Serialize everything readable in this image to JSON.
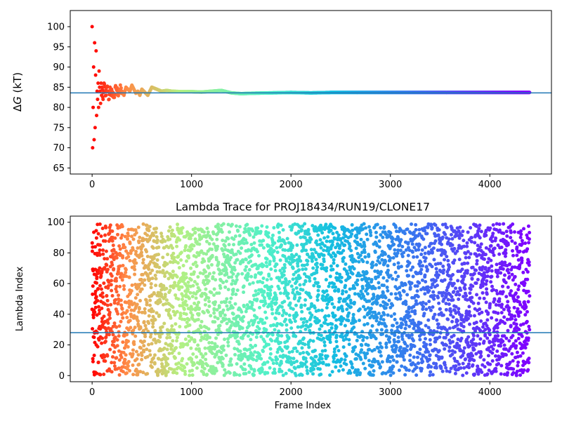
{
  "chart_data": [
    {
      "type": "scatter",
      "title": "",
      "xlabel": "",
      "ylabel": "ΔG (kT)",
      "xlim": [
        -220,
        4620
      ],
      "ylim": [
        63.5,
        104
      ],
      "xticks": [
        0,
        1000,
        2000,
        3000,
        4000
      ],
      "yticks": [
        65,
        70,
        75,
        80,
        85,
        90,
        95,
        100
      ],
      "grid": false,
      "colormap": "rainbow (red at start, violet at end)",
      "hline": {
        "y": 83.6,
        "color": "#1f77b4"
      },
      "series": [
        {
          "description_points": "approximate convergence trace",
          "x": [
            0,
            5,
            10,
            15,
            20,
            25,
            30,
            35,
            40,
            45,
            50,
            55,
            60,
            65,
            70,
            75,
            80,
            85,
            90,
            95,
            100,
            110,
            120,
            130,
            140,
            150,
            160,
            170,
            180,
            190,
            200,
            220,
            240,
            260,
            280,
            300,
            320,
            340,
            360,
            380,
            400,
            420,
            440,
            460,
            480,
            500,
            520,
            540,
            560,
            580,
            600,
            650,
            700,
            750,
            800,
            900,
            1000,
            1100,
            1200,
            1300,
            1400,
            1500,
            1600,
            1800,
            2000,
            2200,
            2400,
            2600,
            2800,
            3000,
            3200,
            3400,
            3600,
            3800,
            4000,
            4200,
            4400
          ],
          "values": [
            100,
            70,
            80,
            90,
            72,
            96,
            75,
            88,
            94,
            78,
            84,
            82,
            86,
            80,
            89,
            85,
            84,
            81,
            86,
            83,
            85,
            82,
            86,
            84,
            83,
            85,
            84,
            82,
            85,
            83,
            84,
            82.5,
            85,
            83.5,
            84.5,
            84,
            83,
            85,
            84.5,
            84,
            85.5,
            84.5,
            83.5,
            84,
            83,
            84.5,
            84,
            83.5,
            83,
            84,
            85,
            84.5,
            84,
            84.2,
            84,
            83.9,
            83.9,
            83.8,
            84,
            84.2,
            83.6,
            83.4,
            83.5,
            83.6,
            83.7,
            83.6,
            83.7,
            83.7,
            83.7,
            83.7,
            83.7,
            83.7,
            83.7,
            83.7,
            83.7,
            83.7,
            83.7
          ]
        }
      ]
    },
    {
      "type": "scatter",
      "title": "Lambda Trace for PROJ18434/RUN19/CLONE17",
      "xlabel": "Frame Index",
      "ylabel": "Lambda Index",
      "xlim": [
        -220,
        4620
      ],
      "ylim": [
        -4,
        104
      ],
      "xticks": [
        0,
        1000,
        2000,
        3000,
        4000
      ],
      "yticks": [
        0,
        20,
        40,
        60,
        80,
        100
      ],
      "grid": false,
      "colormap": "rainbow (red at start, violet at end)",
      "hline": {
        "y": 28,
        "color": "#1f77b4"
      },
      "series": [
        {
          "description_points": "about 4400 frames, lambda index 0–99 scattered uniformly",
          "x_range": [
            0,
            4400
          ],
          "y_range": [
            0,
            99
          ],
          "n_points": 4400
        }
      ]
    }
  ]
}
